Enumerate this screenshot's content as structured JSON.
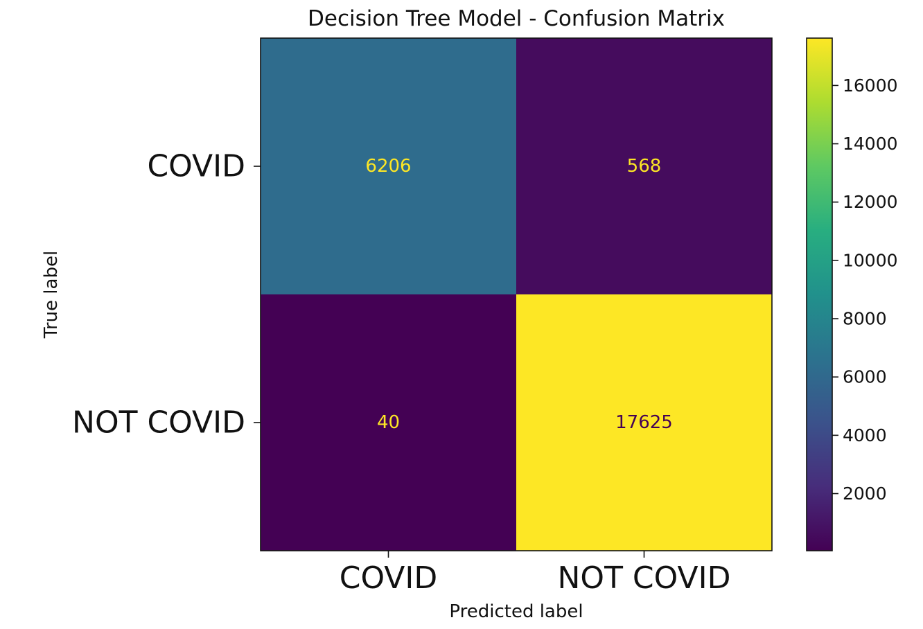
{
  "chart_data": {
    "type": "heatmap",
    "title": "Decision Tree Model - Confusion Matrix",
    "xlabel": "Predicted label",
    "ylabel": "True label",
    "x_categories": [
      "COVID",
      "NOT COVID"
    ],
    "y_categories": [
      "COVID",
      "NOT COVID"
    ],
    "matrix": [
      [
        6206,
        568
      ],
      [
        40,
        17625
      ]
    ],
    "colormap": "viridis",
    "colorbar": {
      "range": [
        40,
        17625
      ],
      "ticks": [
        2000,
        4000,
        6000,
        8000,
        10000,
        12000,
        14000,
        16000
      ]
    },
    "colors": {
      "dark_text": "#440154",
      "light_text": "#fde725"
    }
  }
}
